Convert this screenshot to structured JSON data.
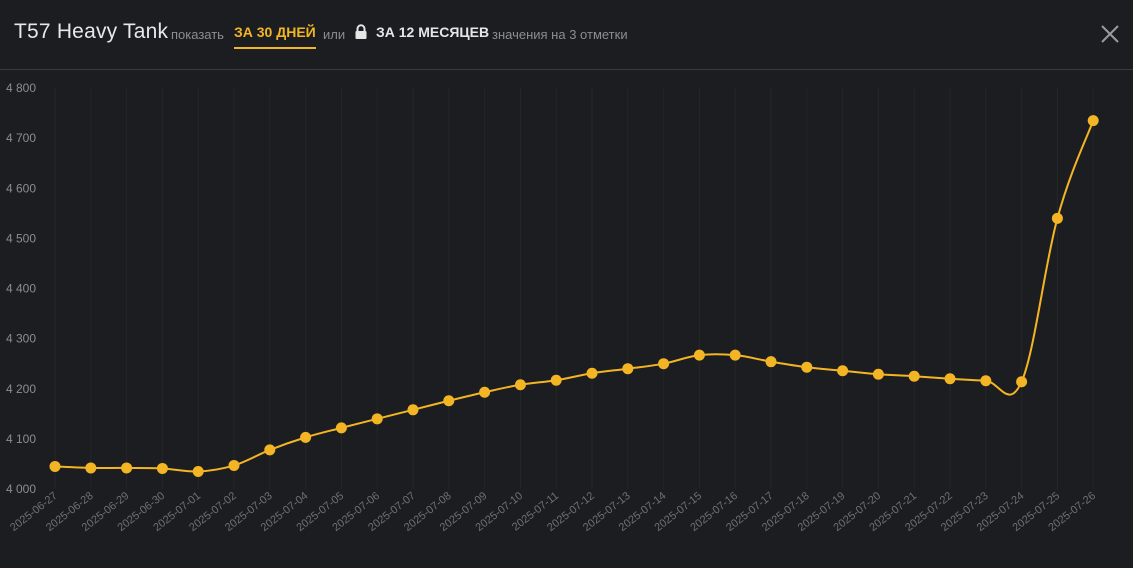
{
  "header": {
    "title": "T57 Heavy Tank",
    "show_label": "показать",
    "tab_30": "ЗА 30 ДНЕЙ",
    "or_label": "или",
    "tab_12": "ЗА 12 МЕСЯЦЕВ",
    "note": "значения на 3 отметки",
    "lock_icon": "lock-icon",
    "close_icon": "close-icon"
  },
  "colors": {
    "accent": "#f3b524",
    "background": "#1c1d20",
    "text_muted": "#8c8d91"
  },
  "chart_data": {
    "type": "line",
    "title": "",
    "xlabel": "",
    "ylabel": "",
    "ylim": [
      4000,
      4800
    ],
    "yticks": [
      4000,
      4100,
      4200,
      4300,
      4400,
      4500,
      4600,
      4700,
      4800
    ],
    "ytick_labels": [
      "4 000",
      "4 100",
      "4 200",
      "4 300",
      "4 400",
      "4 500",
      "4 600",
      "4 700",
      "4 800"
    ],
    "grid": "vertical",
    "legend": "none",
    "x": [
      "2025-06-27",
      "2025-06-28",
      "2025-06-29",
      "2025-06-30",
      "2025-07-01",
      "2025-07-02",
      "2025-07-03",
      "2025-07-04",
      "2025-07-05",
      "2025-07-06",
      "2025-07-07",
      "2025-07-08",
      "2025-07-09",
      "2025-07-10",
      "2025-07-11",
      "2025-07-12",
      "2025-07-13",
      "2025-07-14",
      "2025-07-15",
      "2025-07-16",
      "2025-07-17",
      "2025-07-18",
      "2025-07-19",
      "2025-07-20",
      "2025-07-21",
      "2025-07-22",
      "2025-07-23",
      "2025-07-24",
      "2025-07-25",
      "2025-07-26"
    ],
    "series": [
      {
        "values": [
          4045,
          4042,
          4042,
          4041,
          4035,
          4047,
          4078,
          4103,
          4122,
          4140,
          4158,
          4176,
          4193,
          4208,
          4217,
          4231,
          4240,
          4250,
          4267,
          4267,
          4254,
          4243,
          4236,
          4229,
          4225,
          4220,
          4216,
          4214,
          4540,
          4735
        ]
      }
    ]
  }
}
